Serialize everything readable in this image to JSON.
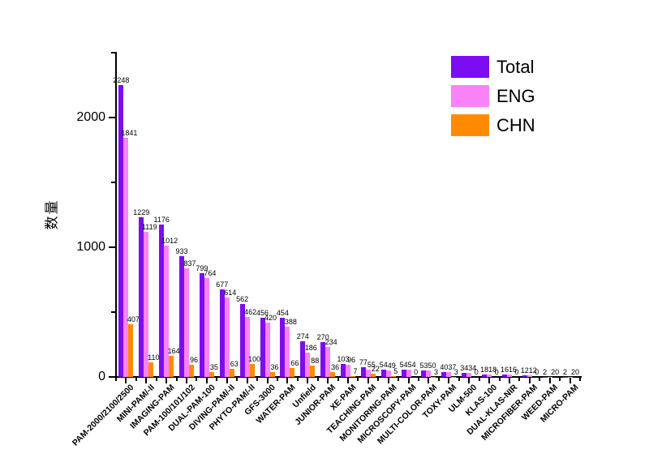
{
  "figure": {
    "background": "#FFFFFF",
    "axis_color": "#000000"
  },
  "legend": {
    "position": "top-right",
    "items": [
      {
        "label": "Total",
        "color": "#7B0DF0"
      },
      {
        "label": "ENG",
        "color": "#F982F9"
      },
      {
        "label": "CHN",
        "color": "#FF8A00"
      }
    ]
  },
  "chart_data": {
    "type": "bar",
    "title": "",
    "xlabel": "",
    "ylabel": "数量",
    "ylim": [
      0,
      2500
    ],
    "yticks_major": [
      0,
      1000,
      2000
    ],
    "yticks_minor": [
      500,
      1500,
      2500
    ],
    "grid": false,
    "legend_position": "top-right",
    "categories": [
      "PAM-2000/2100/2500",
      "MINI-PAM/-II",
      "IMAGING-PAM",
      "PAM-100/101/102",
      "DUAL-PAM-100",
      "DIVING-PAM/-II",
      "PHYTO-PAM/-II",
      "GFS-3000",
      "WATER-PAM",
      "Unfield",
      "JUNIOR-PAM",
      "XE-PAM",
      "TEACHING-PAM",
      "MONITORING-PAM",
      "MICROSCOPY-PAM",
      "MULTI-COLOR-PAM",
      "TOXY-PAM",
      "ULM-500",
      "KLAS-100",
      "DUAL-KLAS-NIR",
      "MICROFIBER-PAM",
      "WEED-PAM",
      "MICRO-PAM"
    ],
    "series": [
      {
        "name": "Total",
        "color": "#7B0DF0",
        "values": [
          2248,
          1229,
          1176,
          933,
          799,
          677,
          562,
          456,
          454,
          274,
          270,
          103,
          77,
          54,
          54,
          53,
          40,
          34,
          18,
          16,
          12,
          2,
          2
        ]
      },
      {
        "name": "ENG",
        "color": "#F982F9",
        "values": [
          1841,
          1119,
          1012,
          837,
          764,
          614,
          462,
          420,
          388,
          186,
          234,
          96,
          55,
          49,
          54,
          50,
          37,
          34,
          18,
          16,
          12,
          2,
          2
        ]
      },
      {
        "name": "CHN",
        "color": "#FF8A00",
        "values": [
          407,
          110,
          164,
          96,
          35,
          63,
          100,
          36,
          66,
          88,
          36,
          7,
          22,
          5,
          0,
          3,
          3,
          0,
          0,
          0,
          0,
          0,
          0
        ]
      }
    ]
  }
}
